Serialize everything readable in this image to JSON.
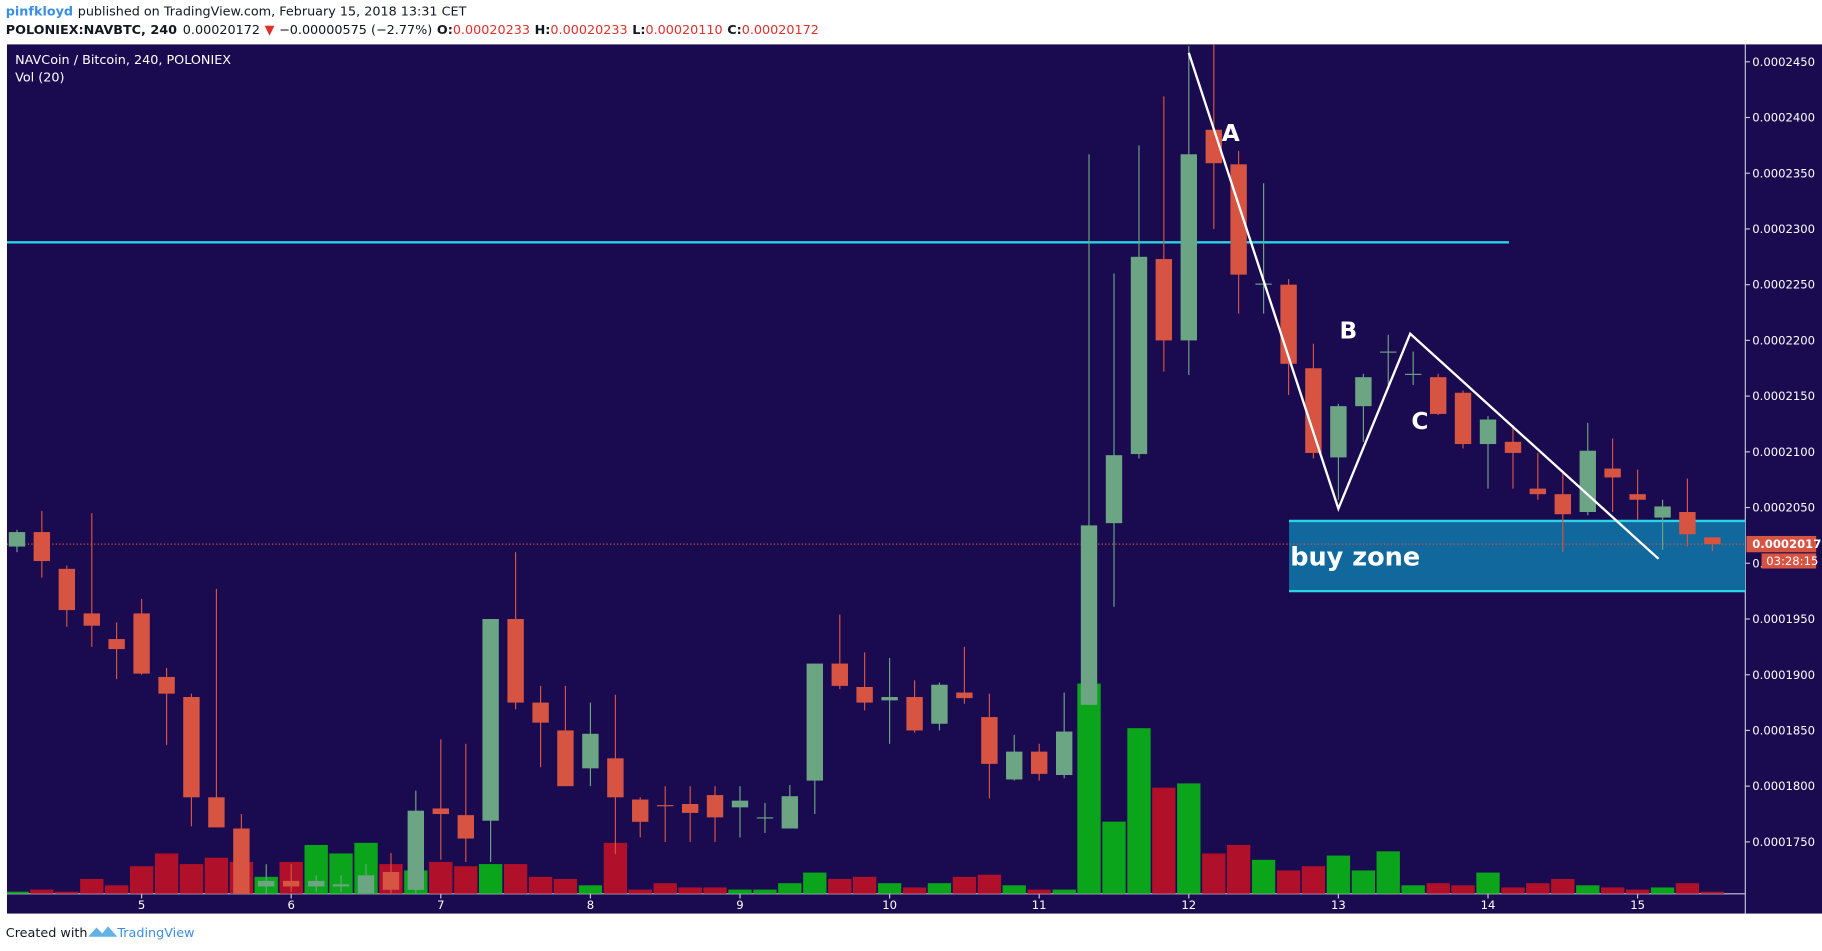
{
  "header": {
    "author": "pinfkloyd",
    "published": "published on TradingView.com, February 15, 2018 13:31 CET",
    "symbol": "POLONIEX:NAVBTC, 240",
    "price": "0.00020172",
    "arrow": "▼",
    "change": "−0.00000575 (−2.77%)",
    "ohlc": [
      {
        "label": "O:",
        "value": "0.00020233"
      },
      {
        "label": "H:",
        "value": "0.00020233"
      },
      {
        "label": "L:",
        "value": "0.00020110"
      },
      {
        "label": "C:",
        "value": "0.00020172"
      }
    ]
  },
  "chart_data": {
    "type": "candlestick",
    "title": "NAVCoin / Bitcoin, 240, POLONIEX",
    "volume_label": "Vol (20)",
    "up_color": "#6ba583",
    "down_color": "#d75442",
    "volume_up_color": "#0aa51a",
    "volume_down_color": "#b0102a",
    "x": [
      4.167,
      4.333,
      4.5,
      4.667,
      4.833,
      5,
      5.167,
      5.333,
      5.5,
      5.667,
      5.833,
      6,
      6.167,
      6.333,
      6.5,
      6.667,
      6.833,
      7,
      7.167,
      7.333,
      7.5,
      7.667,
      7.833,
      8,
      8.167,
      8.333,
      8.5,
      8.667,
      8.833,
      9,
      9.167,
      9.333,
      9.5,
      9.667,
      9.833,
      10,
      10.167,
      10.333,
      10.5,
      10.667,
      10.833,
      11,
      11.167,
      11.333,
      11.5,
      11.667,
      11.833,
      12,
      12.167,
      12.333,
      12.5,
      12.667,
      12.833,
      13,
      13.167,
      13.333,
      13.5,
      13.667,
      13.833,
      14,
      14.167,
      14.333,
      14.5,
      14.667,
      14.833,
      15,
      15.167,
      15.333,
      15.5
    ],
    "open": [
      0.0002015,
      0.0002028,
      0.0001995,
      0.0001955,
      0.0001932,
      0.0001955,
      0.0001898,
      0.000188,
      0.000179,
      0.0001762,
      0.000171,
      0.0001715,
      0.000171,
      0.000171,
      0.0001704,
      0.0001723,
      0.0001707,
      0.000178,
      0.0001774,
      0.0001769,
      0.000195,
      0.0001875,
      0.000185,
      0.0001816,
      0.0001825,
      0.0001788,
      0.0001783,
      0.0001784,
      0.0001792,
      0.0001781,
      0.0001772,
      0.0001762,
      0.0001805,
      0.000191,
      0.0001889,
      0.0001877,
      0.000188,
      0.0001856,
      0.0001884,
      0.0001862,
      0.0001806,
      0.0001831,
      0.000181,
      0.0001873,
      0.0002036,
      0.0002098,
      0.0002273,
      0.00022,
      0.0002389,
      0.0002358,
      0.0002251,
      0.000225,
      0.0002175,
      0.0002095,
      0.0002141,
      0.000219,
      0.000217,
      0.0002167,
      0.0002153,
      0.0002107,
      0.0002109,
      0.0002067,
      0.0002062,
      0.0002046,
      0.0002085,
      0.0002062,
      0.0002041,
      0.0002046,
      0.00020233
    ],
    "high": [
      0.000203,
      0.0002047,
      0.0001998,
      0.0002045,
      0.0001947,
      0.0001968,
      0.0001906,
      0.0001883,
      0.0001977,
      0.0001775,
      0.000173,
      0.000173,
      0.000172,
      0.000172,
      0.000173,
      0.000174,
      0.0001796,
      0.0001842,
      0.0001838,
      0.000195,
      0.000201,
      0.000189,
      0.000189,
      0.0001875,
      0.0001882,
      0.000179,
      0.00018,
      0.00018,
      0.00018,
      0.00018,
      0.0001785,
      0.0001801,
      0.000191,
      0.0001954,
      0.000192,
      0.0001915,
      0.0001895,
      0.0001893,
      0.0001925,
      0.0001883,
      0.0001846,
      0.0001838,
      0.0001884,
      0.0002367,
      0.000226,
      0.0002375,
      0.0002419,
      0.0002464,
      0.0002466,
      0.000237,
      0.0002341,
      0.0002255,
      0.0002197,
      0.0002143,
      0.000217,
      0.0002205,
      0.000219,
      0.000217,
      0.0002155,
      0.0002132,
      0.0002124,
      0.0002099,
      0.0002083,
      0.0002126,
      0.0002112,
      0.0002084,
      0.0002057,
      0.0002076,
      0.00020233
    ],
    "low": [
      0.000201,
      0.0001987,
      0.0001943,
      0.0001925,
      0.0001896,
      0.00019,
      0.0001837,
      0.0001764,
      0.0001763,
      0.0001702,
      0.00017,
      0.0001705,
      0.0001705,
      0.0001705,
      0.00017,
      0.00017,
      0.00017,
      0.0001734,
      0.0001732,
      0.0001732,
      0.0001869,
      0.0001817,
      0.00018,
      0.00018,
      0.0001739,
      0.0001754,
      0.000175,
      0.000175,
      0.000175,
      0.0001754,
      0.0001758,
      0.0001762,
      0.0001775,
      0.0001887,
      0.0001868,
      0.0001838,
      0.0001848,
      0.000185,
      0.0001874,
      0.0001789,
      0.0001805,
      0.0001805,
      0.0001807,
      0.0001873,
      0.0001961,
      0.0002094,
      0.0002172,
      0.0002169,
      0.00023,
      0.0002224,
      0.0002224,
      0.0002151,
      0.0002094,
      0.0002057,
      0.0002109,
      0.000216,
      0.000216,
      0.0002133,
      0.0002103,
      0.0002067,
      0.0002067,
      0.0002057,
      0.000201,
      0.0002043,
      0.0002046,
      0.0002039,
      0.0002012,
      0.0002015,
      0.0002011
    ],
    "close": [
      0.0002028,
      0.0002002,
      0.0001958,
      0.0001944,
      0.0001923,
      0.0001901,
      0.0001883,
      0.000179,
      0.0001763,
      0.0001702,
      0.0001715,
      0.000171,
      0.0001715,
      0.0001712,
      0.000172,
      0.0001707,
      0.0001778,
      0.0001775,
      0.0001753,
      0.000195,
      0.0001875,
      0.0001857,
      0.00018,
      0.0001847,
      0.000179,
      0.0001768,
      0.0001782,
      0.0001776,
      0.0001772,
      0.0001787,
      0.0001772,
      0.0001791,
      0.000191,
      0.000189,
      0.0001875,
      0.000188,
      0.000185,
      0.0001891,
      0.0001879,
      0.000182,
      0.0001831,
      0.0001811,
      0.0001849,
      0.0002034,
      0.0002097,
      0.0002275,
      0.00022,
      0.0002367,
      0.0002359,
      0.0002259,
      0.0002251,
      0.0002179,
      0.0002099,
      0.0002141,
      0.0002167,
      0.000219,
      0.000217,
      0.0002134,
      0.0002107,
      0.0002129,
      0.0002099,
      0.0002062,
      0.0002044,
      0.0002101,
      0.0002077,
      0.0002057,
      0.0002051,
      0.0002026,
      0.00020172
    ],
    "volume": [
      1,
      2,
      1,
      7,
      4,
      13,
      19,
      14,
      17,
      15,
      8,
      15,
      23,
      19,
      24,
      14,
      11,
      15,
      13,
      14,
      14,
      8,
      7,
      4,
      24,
      2,
      5,
      3,
      3,
      2,
      2,
      5,
      10,
      7,
      8,
      5,
      3,
      5,
      8,
      9,
      4,
      2,
      2,
      99,
      34,
      78,
      50,
      52,
      19,
      23,
      16,
      11,
      13,
      18,
      11,
      20,
      4,
      5,
      4,
      10,
      3,
      5,
      7,
      4,
      3,
      2,
      3,
      5,
      1
    ],
    "volume_ylim": [
      0,
      400
    ],
    "xlim": [
      4.1,
      15.72
    ],
    "xticks": [
      5,
      6,
      7,
      8,
      9,
      10,
      11,
      12,
      13,
      14,
      15
    ],
    "ylim": [
      0.00017034,
      0.00024656
    ],
    "yticks": [
      {
        "value": 0.000175,
        "label": "0.0001750"
      },
      {
        "value": 0.00018,
        "label": "0.0001800"
      },
      {
        "value": 0.000185,
        "label": "0.0001850"
      },
      {
        "value": 0.00019,
        "label": "0.0001900"
      },
      {
        "value": 0.000195,
        "label": "0.0001950"
      },
      {
        "value": 0.0002,
        "label": "0.0002000"
      },
      {
        "value": 0.000205,
        "label": "0.0002050"
      },
      {
        "value": 0.00021,
        "label": "0.0002100"
      },
      {
        "value": 0.000215,
        "label": "0.0002150"
      },
      {
        "value": 0.00022,
        "label": "0.0002200"
      },
      {
        "value": 0.000225,
        "label": "0.0002250"
      },
      {
        "value": 0.00023,
        "label": "0.0002300"
      },
      {
        "value": 0.000235,
        "label": "0.0002350"
      },
      {
        "value": 0.00024,
        "label": "0.0002400"
      },
      {
        "value": 0.000245,
        "label": "0.0002450"
      }
    ],
    "last_price": 0.00020172,
    "countdown": "03:28:15",
    "resistance": {
      "y": 0.0002288,
      "x_end": 14.14,
      "color": "#2bd4e4"
    },
    "buy_zone": {
      "label": "buy zone",
      "x_start": 12.67,
      "y": [
        0.0001975,
        0.0002038
      ],
      "color": "#11689c"
    },
    "wave": {
      "x": [
        12.0,
        13.0,
        13.48,
        15.14
      ],
      "y": [
        0.0002458,
        0.0002049,
        0.0002206,
        0.0002004
      ],
      "labels": [
        "A",
        "B",
        "C"
      ]
    }
  },
  "footer": {
    "created": "Created with",
    "brand": "TradingView"
  }
}
